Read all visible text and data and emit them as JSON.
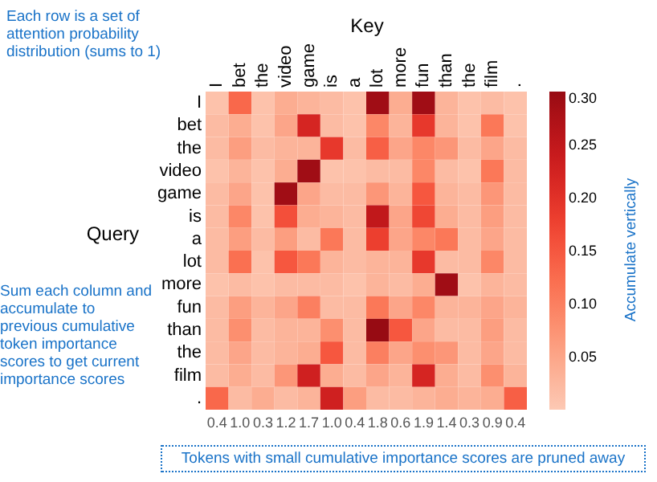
{
  "chart_data": {
    "type": "heatmap",
    "xlabel": "Key",
    "ylabel": "Query",
    "categories": [
      "I",
      "bet",
      "the",
      "video",
      "game",
      "is",
      "a",
      "lot",
      "more",
      "fun",
      "than",
      "the",
      "film",
      "."
    ],
    "y_categories": [
      "I",
      "bet",
      "the",
      "video",
      "game",
      "is",
      "a",
      "lot",
      "more",
      "fun",
      "than",
      "the",
      "film",
      "."
    ],
    "cells": [
      [
        0.01,
        0.13,
        0.01,
        0.04,
        0.03,
        0.02,
        0.01,
        0.29,
        0.04,
        0.29,
        0.03,
        0.01,
        0.02,
        0.01
      ],
      [
        0.02,
        0.04,
        0.01,
        0.05,
        0.22,
        0.02,
        0.01,
        0.09,
        0.03,
        0.19,
        0.03,
        0.01,
        0.11,
        0.01
      ],
      [
        0.02,
        0.06,
        0.02,
        0.03,
        0.03,
        0.19,
        0.02,
        0.14,
        0.05,
        0.09,
        0.07,
        0.02,
        0.05,
        0.02
      ],
      [
        0.01,
        0.03,
        0.01,
        0.04,
        0.29,
        0.01,
        0.01,
        0.02,
        0.02,
        0.09,
        0.02,
        0.01,
        0.11,
        0.02
      ],
      [
        0.02,
        0.05,
        0.01,
        0.29,
        0.05,
        0.02,
        0.02,
        0.07,
        0.03,
        0.15,
        0.03,
        0.02,
        0.07,
        0.02
      ],
      [
        0.02,
        0.09,
        0.01,
        0.16,
        0.04,
        0.03,
        0.02,
        0.25,
        0.05,
        0.17,
        0.04,
        0.02,
        0.06,
        0.02
      ],
      [
        0.02,
        0.06,
        0.02,
        0.06,
        0.02,
        0.11,
        0.02,
        0.18,
        0.05,
        0.09,
        0.11,
        0.02,
        0.05,
        0.02
      ],
      [
        0.02,
        0.12,
        0.01,
        0.15,
        0.11,
        0.03,
        0.02,
        0.03,
        0.03,
        0.19,
        0.02,
        0.02,
        0.09,
        0.02
      ],
      [
        0.01,
        0.02,
        0.01,
        0.02,
        0.02,
        0.02,
        0.01,
        0.03,
        0.02,
        0.04,
        0.29,
        0.01,
        0.03,
        0.02
      ],
      [
        0.02,
        0.06,
        0.03,
        0.05,
        0.1,
        0.02,
        0.02,
        0.11,
        0.05,
        0.09,
        0.03,
        0.03,
        0.05,
        0.03
      ],
      [
        0.02,
        0.08,
        0.02,
        0.03,
        0.03,
        0.08,
        0.02,
        0.3,
        0.15,
        0.05,
        0.02,
        0.02,
        0.06,
        0.02
      ],
      [
        0.02,
        0.05,
        0.02,
        0.03,
        0.04,
        0.15,
        0.02,
        0.1,
        0.05,
        0.08,
        0.07,
        0.02,
        0.05,
        0.02
      ],
      [
        0.02,
        0.04,
        0.02,
        0.07,
        0.23,
        0.04,
        0.02,
        0.05,
        0.03,
        0.22,
        0.04,
        0.02,
        0.08,
        0.03
      ],
      [
        0.13,
        0.02,
        0.04,
        0.02,
        0.03,
        0.23,
        0.06,
        0.02,
        0.02,
        0.03,
        0.04,
        0.03,
        0.04,
        0.14
      ]
    ],
    "clim": [
      0,
      0.3
    ],
    "cticks": [
      {
        "value": 0.05,
        "label": "0.05"
      },
      {
        "value": 0.1,
        "label": "0.10"
      },
      {
        "value": 0.15,
        "label": "0.15"
      },
      {
        "value": 0.2,
        "label": "0.20"
      },
      {
        "value": 0.25,
        "label": "0.25"
      },
      {
        "value": 0.3,
        "label": "0.30"
      }
    ],
    "annotations": [
      "Each row is a set of attention probability distribution (sums to 1)",
      "Sum each column and accumulate to previous cumulative token importance scores to get current importance scores",
      "Accumulate vertically",
      "Tokens with small cumulative importance scores are pruned away",
      "0.4",
      "1.0",
      "0.3",
      "1.2",
      "1.7",
      "1.0",
      "0.4",
      "1.8",
      "0.6",
      "1.9",
      "1.4",
      "0.3",
      "0.9",
      "0.4"
    ]
  }
}
